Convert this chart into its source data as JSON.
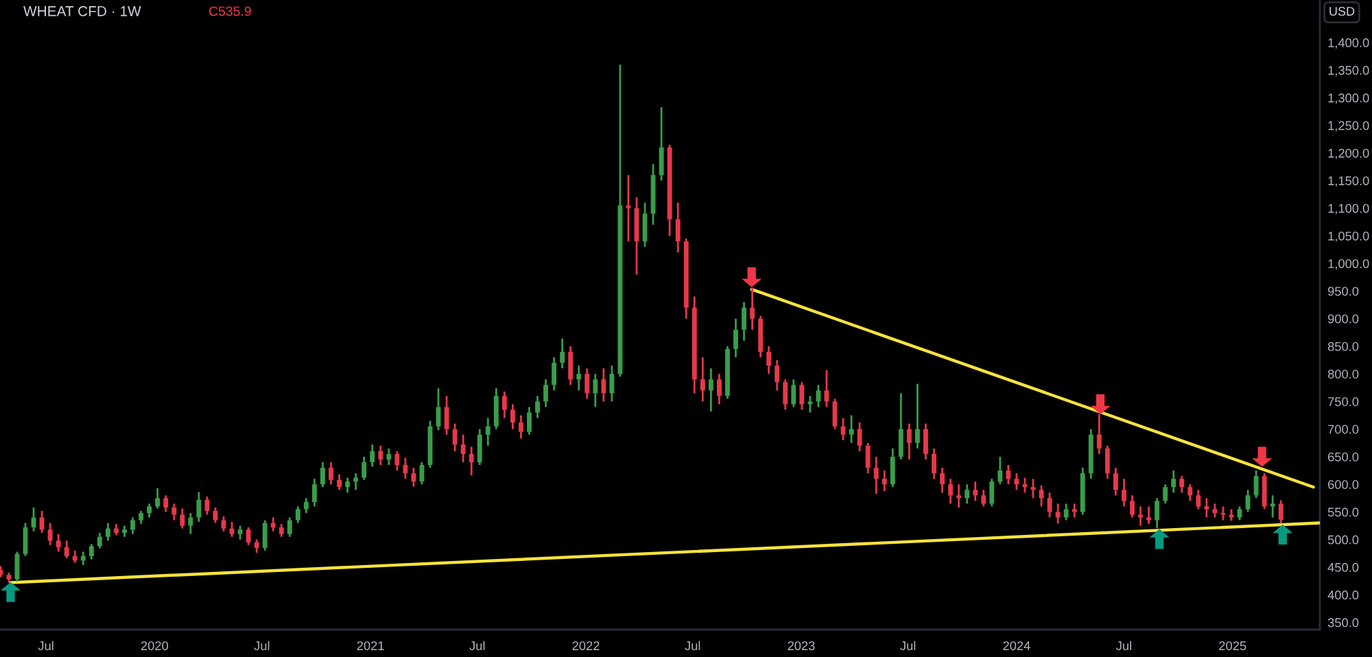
{
  "chart_data": {
    "type": "candlestick",
    "title": "WHEAT CFD · 1W",
    "annotations": [
      "C535.9",
      "USD"
    ],
    "colors": [
      "#e5394a",
      "#e5394a",
      "#3a9d4a",
      "#3a9d4a",
      "#3a9d4a",
      "#e5394a",
      "#e5394a",
      "#e5394a",
      "#e5394a",
      "#e5394a",
      "#3a9d4a",
      "#3a9d4a",
      "#3a9d4a",
      "#3a9d4a",
      "#e5394a",
      "#3a9d4a",
      "#3a9d4a",
      "#3a9d4a",
      "#3a9d4a",
      "#3a9d4a",
      "#e5394a",
      "#e5394a",
      "#e5394a",
      "#3a9d4a",
      "#3a9d4a",
      "#e5394a",
      "#e5394a",
      "#e5394a",
      "#e5394a",
      "#3a9d4a",
      "#e5394a",
      "#e5394a",
      "#3a9d4a",
      "#e5394a",
      "#e5394a",
      "#3a9d4a",
      "#3a9d4a",
      "#3a9d4a",
      "#3a9d4a",
      "#3a9d4a",
      "#e5394a",
      "#e5394a",
      "#3a9d4a",
      "#3a9d4a",
      "#3a9d4a",
      "#3a9d4a",
      "#e5394a",
      "#3a9d4a",
      "#e5394a",
      "#e5394a",
      "#e5394a",
      "#3a9d4a",
      "#3a9d4a",
      "#3a9d4a",
      "#e5394a",
      "#e5394a",
      "#e5394a",
      "#e5394a",
      "#3a9d4a",
      "#3a9d4a",
      "#3a9d4a",
      "#e5394a",
      "#e5394a",
      "#e5394a",
      "#3a9d4a",
      "#3a9d4a",
      "#3a9d4a",
      "#3a9d4a",
      "#3a9d4a",
      "#e5394a",
      "#3a9d4a",
      "#e5394a",
      "#3a9d4a",
      "#e5394a",
      "#3a9d4a",
      "#3a9d4a",
      "#e5394a",
      "#e5394a",
      "#3a9d4a",
      "#3a9d4a",
      "#3a9d4a",
      "#e5394a",
      "#e5394a",
      "#e5394a",
      "#e5394a",
      "#e5394a",
      "#3a9d4a",
      "#e5394a",
      "#3a9d4a",
      "#3a9d4a",
      "#3a9d4a",
      "#e5394a",
      "#e5394a",
      "#e5394a",
      "#e5394a",
      "#e5394a",
      "#3a9d4a",
      "#e5394a",
      "#3a9d4a",
      "#3a9d4a",
      "#e5394a",
      "#e5394a",
      "#e5394a",
      "#3a9d4a",
      "#e5394a",
      "#e5394a",
      "#e5394a",
      "#e5394a",
      "#3a9d4a",
      "#3a9d4a",
      "#e5394a",
      "#3a9d4a",
      "#e5394a",
      "#e5394a",
      "#e5394a",
      "#e5394a",
      "#e5394a",
      "#3a9d4a",
      "#e5394a",
      "#e5394a",
      "#3a9d4a",
      "#3a9d4a",
      "#e5394a",
      "#e5394a",
      "#e5394a",
      "#e5394a",
      "#e5394a",
      "#e5394a",
      "#e5394a",
      "#3a9d4a",
      "#e5394a",
      "#3a9d4a",
      "#3a9d4a",
      "#e5394a",
      "#e5394a",
      "#e5394a",
      "#e5394a",
      "#e5394a",
      "#e5394a",
      "#e5394a",
      "#3a9d4a",
      "#3a9d4a",
      "#3a9d4a",
      "#e5394a",
      "#e5394a",
      "#e5394a",
      "#e5394a",
      "#e5394a",
      "#e5394a",
      "#e5394a",
      "#3a9d4a",
      "#3a9d4a",
      "#3a9d4a",
      "#e5394a",
      "#3a9d4a",
      "#e5394a"
    ],
    "x": [
      "2019-04-15",
      "2019-04-29",
      "2019-05-13",
      "2019-05-27",
      "2019-06-10",
      "2019-06-24",
      "2019-07-08",
      "2019-07-22",
      "2019-08-05",
      "2019-08-19",
      "2019-09-02",
      "2019-09-16",
      "2019-09-30",
      "2019-10-14",
      "2019-10-28",
      "2019-11-11",
      "2019-11-25",
      "2019-12-09",
      "2019-12-23",
      "2020-01-06",
      "2020-01-20",
      "2020-02-03",
      "2020-02-17",
      "2020-03-02",
      "2020-03-16",
      "2020-03-30",
      "2020-04-13",
      "2020-04-27",
      "2020-05-11",
      "2020-05-25",
      "2020-06-08",
      "2020-06-22",
      "2020-07-06",
      "2020-07-20",
      "2020-08-03",
      "2020-08-17",
      "2020-08-31",
      "2020-09-14",
      "2020-09-28",
      "2020-10-12",
      "2020-10-26",
      "2020-11-09",
      "2020-11-23",
      "2020-12-07",
      "2020-12-21",
      "2021-01-04",
      "2021-01-18",
      "2021-02-01",
      "2021-02-15",
      "2021-03-01",
      "2021-03-15",
      "2021-03-29",
      "2021-04-12",
      "2021-04-26",
      "2021-05-10",
      "2021-05-24",
      "2021-06-07",
      "2021-06-21",
      "2021-07-05",
      "2021-07-19",
      "2021-08-02",
      "2021-08-16",
      "2021-08-30",
      "2021-09-13",
      "2021-09-27",
      "2021-10-11",
      "2021-10-25",
      "2021-11-08",
      "2021-11-22",
      "2021-12-06",
      "2021-12-20",
      "2022-01-03",
      "2022-01-17",
      "2022-01-31",
      "2022-02-14",
      "2022-02-28",
      "2022-03-14",
      "2022-03-28",
      "2022-04-11",
      "2022-04-25",
      "2022-05-09",
      "2022-05-23",
      "2022-06-06",
      "2022-06-20",
      "2022-07-04",
      "2022-07-18",
      "2022-08-01",
      "2022-08-15",
      "2022-08-29",
      "2022-09-12",
      "2022-09-26",
      "2022-10-10",
      "2022-10-24",
      "2022-11-07",
      "2022-11-21",
      "2022-12-05",
      "2022-12-19",
      "2023-01-02",
      "2023-01-16",
      "2023-01-30",
      "2023-02-13",
      "2023-02-27",
      "2023-03-13",
      "2023-03-27",
      "2023-04-10",
      "2023-04-24",
      "2023-05-08",
      "2023-05-22",
      "2023-06-05",
      "2023-06-19",
      "2023-07-03",
      "2023-07-17",
      "2023-07-31",
      "2023-08-14",
      "2023-08-28",
      "2023-09-11",
      "2023-09-25",
      "2023-10-09",
      "2023-10-23",
      "2023-11-06",
      "2023-11-20",
      "2023-12-04",
      "2023-12-18",
      "2024-01-01",
      "2024-01-15",
      "2024-01-29",
      "2024-02-12",
      "2024-02-26",
      "2024-03-11",
      "2024-03-25",
      "2024-04-08",
      "2024-04-22",
      "2024-05-06",
      "2024-05-20",
      "2024-06-03",
      "2024-06-17",
      "2024-07-01",
      "2024-07-15",
      "2024-07-29",
      "2024-08-12",
      "2024-08-26",
      "2024-09-09",
      "2024-09-23",
      "2024-10-07",
      "2024-10-21",
      "2024-11-04",
      "2024-11-18",
      "2024-12-02",
      "2024-12-16",
      "2024-12-30",
      "2025-01-13",
      "2025-01-27",
      "2025-02-10",
      "2025-02-24",
      "2025-03-10",
      "2025-03-24"
    ],
    "ohlc": [
      [
        445,
        452,
        432,
        436
      ],
      [
        436,
        440,
        422,
        428
      ],
      [
        428,
        478,
        424,
        474
      ],
      [
        474,
        530,
        470,
        522
      ],
      [
        522,
        558,
        515,
        540
      ],
      [
        540,
        552,
        512,
        518
      ],
      [
        518,
        530,
        490,
        498
      ],
      [
        498,
        510,
        478,
        486
      ],
      [
        486,
        498,
        466,
        470
      ],
      [
        470,
        480,
        458,
        462
      ],
      [
        462,
        478,
        454,
        470
      ],
      [
        470,
        492,
        464,
        488
      ],
      [
        488,
        512,
        484,
        505
      ],
      [
        505,
        530,
        498,
        520
      ],
      [
        520,
        528,
        508,
        512
      ],
      [
        512,
        525,
        505,
        518
      ],
      [
        518,
        540,
        510,
        535
      ],
      [
        535,
        552,
        528,
        548
      ],
      [
        548,
        565,
        540,
        560
      ],
      [
        560,
        593,
        556,
        575
      ],
      [
        575,
        580,
        550,
        558
      ],
      [
        558,
        565,
        535,
        545
      ],
      [
        545,
        556,
        520,
        525
      ],
      [
        525,
        548,
        510,
        540
      ],
      [
        540,
        586,
        532,
        572
      ],
      [
        572,
        578,
        545,
        552
      ],
      [
        552,
        558,
        530,
        535
      ],
      [
        535,
        542,
        515,
        520
      ],
      [
        520,
        532,
        505,
        510
      ],
      [
        510,
        525,
        500,
        518
      ],
      [
        518,
        522,
        490,
        495
      ],
      [
        495,
        500,
        476,
        485
      ],
      [
        485,
        535,
        480,
        530
      ],
      [
        530,
        540,
        515,
        522
      ],
      [
        522,
        528,
        505,
        510
      ],
      [
        510,
        540,
        505,
        535
      ],
      [
        535,
        560,
        530,
        555
      ],
      [
        555,
        575,
        548,
        568
      ],
      [
        568,
        610,
        560,
        600
      ],
      [
        600,
        640,
        595,
        630
      ],
      [
        630,
        640,
        600,
        608
      ],
      [
        608,
        618,
        590,
        595
      ],
      [
        595,
        612,
        585,
        605
      ],
      [
        605,
        620,
        590,
        612
      ],
      [
        612,
        650,
        608,
        640
      ],
      [
        640,
        672,
        632,
        660
      ],
      [
        660,
        670,
        635,
        645
      ],
      [
        645,
        665,
        635,
        655
      ],
      [
        655,
        660,
        625,
        635
      ],
      [
        635,
        648,
        610,
        620
      ],
      [
        620,
        630,
        596,
        605
      ],
      [
        605,
        640,
        600,
        635
      ],
      [
        635,
        715,
        630,
        705
      ],
      [
        705,
        774,
        698,
        740
      ],
      [
        740,
        760,
        690,
        700
      ],
      [
        700,
        710,
        660,
        672
      ],
      [
        672,
        690,
        640,
        655
      ],
      [
        655,
        668,
        616,
        640
      ],
      [
        640,
        700,
        635,
        690
      ],
      [
        690,
        720,
        670,
        705
      ],
      [
        705,
        774,
        700,
        760
      ],
      [
        760,
        768,
        720,
        735
      ],
      [
        735,
        745,
        700,
        712
      ],
      [
        712,
        725,
        683,
        695
      ],
      [
        695,
        740,
        690,
        730
      ],
      [
        730,
        760,
        720,
        750
      ],
      [
        750,
        790,
        740,
        780
      ],
      [
        780,
        830,
        770,
        820
      ],
      [
        820,
        864,
        810,
        840
      ],
      [
        840,
        850,
        780,
        790
      ],
      [
        790,
        815,
        770,
        800
      ],
      [
        800,
        810,
        755,
        765
      ],
      [
        765,
        800,
        740,
        790
      ],
      [
        790,
        810,
        750,
        765
      ],
      [
        765,
        815,
        750,
        800
      ],
      [
        800,
        1360,
        795,
        1105
      ],
      [
        1105,
        1160,
        1040,
        1100
      ],
      [
        1100,
        1120,
        980,
        1040
      ],
      [
        1040,
        1110,
        1030,
        1090
      ],
      [
        1090,
        1180,
        1070,
        1160
      ],
      [
        1160,
        1283,
        1150,
        1210
      ],
      [
        1210,
        1215,
        1050,
        1080
      ],
      [
        1080,
        1110,
        1020,
        1040
      ],
      [
        1040,
        1045,
        900,
        920
      ],
      [
        920,
        940,
        765,
        790
      ],
      [
        790,
        830,
        750,
        770
      ],
      [
        770,
        810,
        732,
        790
      ],
      [
        790,
        800,
        745,
        760
      ],
      [
        760,
        850,
        755,
        845
      ],
      [
        845,
        900,
        830,
        880
      ],
      [
        880,
        930,
        860,
        920
      ],
      [
        920,
        956,
        880,
        900
      ],
      [
        900,
        905,
        830,
        840
      ],
      [
        840,
        850,
        800,
        815
      ],
      [
        815,
        825,
        770,
        785
      ],
      [
        785,
        790,
        735,
        745
      ],
      [
        745,
        790,
        740,
        780
      ],
      [
        780,
        785,
        735,
        745
      ],
      [
        745,
        760,
        730,
        750
      ],
      [
        750,
        780,
        740,
        770
      ],
      [
        770,
        807,
        740,
        750
      ],
      [
        750,
        755,
        700,
        705
      ],
      [
        705,
        720,
        680,
        690
      ],
      [
        690,
        725,
        675,
        700
      ],
      [
        700,
        712,
        660,
        670
      ],
      [
        670,
        675,
        620,
        630
      ],
      [
        630,
        650,
        583,
        610
      ],
      [
        610,
        625,
        588,
        600
      ],
      [
        600,
        665,
        595,
        650
      ],
      [
        650,
        765,
        645,
        700
      ],
      [
        700,
        710,
        645,
        675
      ],
      [
        675,
        782,
        665,
        700
      ],
      [
        700,
        710,
        645,
        655
      ],
      [
        655,
        665,
        610,
        620
      ],
      [
        620,
        630,
        585,
        600
      ],
      [
        600,
        610,
        565,
        580
      ],
      [
        580,
        600,
        558,
        575
      ],
      [
        575,
        600,
        565,
        590
      ],
      [
        590,
        605,
        570,
        580
      ],
      [
        580,
        590,
        560,
        565
      ],
      [
        565,
        610,
        560,
        605
      ],
      [
        605,
        650,
        600,
        625
      ],
      [
        625,
        635,
        600,
        610
      ],
      [
        610,
        620,
        590,
        600
      ],
      [
        600,
        612,
        585,
        595
      ],
      [
        595,
        610,
        575,
        590
      ],
      [
        590,
        598,
        560,
        575
      ],
      [
        575,
        585,
        540,
        550
      ],
      [
        550,
        565,
        529,
        540
      ],
      [
        540,
        565,
        535,
        555
      ],
      [
        555,
        565,
        540,
        550
      ],
      [
        550,
        630,
        545,
        620
      ],
      [
        620,
        700,
        610,
        690
      ],
      [
        690,
        727,
        655,
        665
      ],
      [
        665,
        670,
        610,
        620
      ],
      [
        620,
        630,
        580,
        590
      ],
      [
        590,
        610,
        560,
        570
      ],
      [
        570,
        580,
        540,
        545
      ],
      [
        545,
        560,
        525,
        540
      ],
      [
        540,
        560,
        528,
        535
      ],
      [
        535,
        575,
        521,
        570
      ],
      [
        570,
        600,
        565,
        595
      ],
      [
        595,
        625,
        585,
        610
      ],
      [
        610,
        615,
        585,
        595
      ],
      [
        595,
        600,
        570,
        580
      ],
      [
        580,
        590,
        555,
        560
      ],
      [
        560,
        575,
        540,
        555
      ],
      [
        555,
        565,
        540,
        548
      ],
      [
        548,
        560,
        535,
        545
      ],
      [
        545,
        555,
        534,
        540
      ],
      [
        540,
        560,
        535,
        555
      ],
      [
        555,
        590,
        550,
        580
      ],
      [
        580,
        625,
        575,
        615
      ],
      [
        615,
        620,
        555,
        560
      ],
      [
        560,
        580,
        540,
        565
      ],
      [
        565,
        571,
        529,
        535.9
      ]
    ],
    "series": [
      {
        "type": "line",
        "color": "#f7e33b",
        "x": [
          "2019-05-02",
          "2025-05-29"
        ],
        "values": [
          422,
          530
        ]
      },
      {
        "type": "line",
        "color": "#f7e33b",
        "x": [
          "2022-10-09",
          "2025-05-18"
        ],
        "values": [
          953,
          595
        ]
      },
      {
        "type": "scatter",
        "marker": "triangle_down",
        "color": "#f23645",
        "x": [
          "2022-10-09",
          "2024-05-22",
          "2025-02-20"
        ],
        "values": [
          975,
          745,
          650
        ]
      },
      {
        "type": "scatter",
        "marker": "triangle",
        "color": "#089981",
        "x": [
          "2019-05-02",
          "2024-08-30",
          "2025-03-27"
        ],
        "values": [
          405,
          501,
          509
        ]
      }
    ],
    "xlim": [
      "2019-04-14",
      "2025-05-29"
    ],
    "xticks": [
      {
        "value": "2019-07-01",
        "label": "Jul"
      },
      {
        "value": "2020-01-01",
        "label": "2020"
      },
      {
        "value": "2020-07-01",
        "label": "Jul"
      },
      {
        "value": "2021-01-01",
        "label": "2021"
      },
      {
        "value": "2021-07-01",
        "label": "Jul"
      },
      {
        "value": "2022-01-01",
        "label": "2022"
      },
      {
        "value": "2022-07-01",
        "label": "Jul"
      },
      {
        "value": "2023-01-01",
        "label": "2023"
      },
      {
        "value": "2023-07-01",
        "label": "Jul"
      },
      {
        "value": "2024-01-01",
        "label": "2024"
      },
      {
        "value": "2024-07-01",
        "label": "Jul"
      },
      {
        "value": "2025-01-01",
        "label": "2025"
      }
    ],
    "ylim": [
      337,
      1477
    ],
    "yticks": [
      {
        "value": 350,
        "label": "350.0"
      },
      {
        "value": 400,
        "label": "400.0"
      },
      {
        "value": 450,
        "label": "450.0"
      },
      {
        "value": 500,
        "label": "500.0"
      },
      {
        "value": 550,
        "label": "550.0"
      },
      {
        "value": 600,
        "label": "600.0"
      },
      {
        "value": 650,
        "label": "650.0"
      },
      {
        "value": 700,
        "label": "700.0"
      },
      {
        "value": 750,
        "label": "750.0"
      },
      {
        "value": 800,
        "label": "800.0"
      },
      {
        "value": 850,
        "label": "850.0"
      },
      {
        "value": 900,
        "label": "900.0"
      },
      {
        "value": 950,
        "label": "950.0"
      },
      {
        "value": 1000,
        "label": "1,000.0"
      },
      {
        "value": 1050,
        "label": "1,050.0"
      },
      {
        "value": 1100,
        "label": "1,100.0"
      },
      {
        "value": 1150,
        "label": "1,150.0"
      },
      {
        "value": 1200,
        "label": "1,200.0"
      },
      {
        "value": 1250,
        "label": "1,250.0"
      },
      {
        "value": 1300,
        "label": "1,300.0"
      },
      {
        "value": 1350,
        "label": "1,350.0"
      },
      {
        "value": 1400,
        "label": "1,400.0"
      }
    ]
  }
}
